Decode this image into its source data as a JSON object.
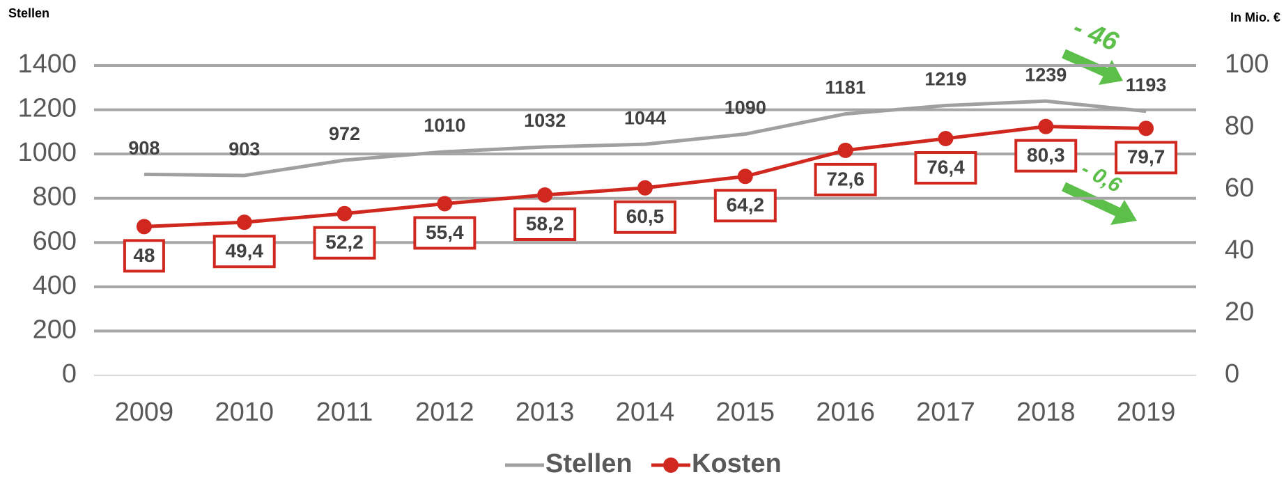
{
  "chart_data": {
    "type": "line",
    "y_axis_title": "Stellen",
    "y2_axis_title": "In Mio. €",
    "categories": [
      "2009",
      "2010",
      "2011",
      "2012",
      "2013",
      "2014",
      "2015",
      "2016",
      "2017",
      "2018",
      "2019"
    ],
    "series": [
      {
        "name": "Stellen",
        "color": "#a0a0a0",
        "values": [
          908,
          903,
          972,
          1010,
          1032,
          1044,
          1090,
          1181,
          1219,
          1239,
          1193
        ]
      },
      {
        "name": "Kosten",
        "color": "#d0281f",
        "axis": "y2",
        "values": [
          48,
          49.4,
          52.2,
          55.4,
          58.2,
          60.5,
          64.2,
          72.6,
          76.4,
          80.3,
          79.7
        ],
        "value_labels": [
          "48",
          "49,4",
          "52,2",
          "55,4",
          "58,2",
          "60,5",
          "64,2",
          "72,6",
          "76,4",
          "80,3",
          "79,7"
        ]
      }
    ],
    "ylim": [
      0,
      1400
    ],
    "yticks": [
      0,
      200,
      400,
      600,
      800,
      1000,
      1200,
      1400
    ],
    "y2lim": [
      0,
      100
    ],
    "y2ticks": [
      0,
      20,
      40,
      60,
      80,
      100
    ],
    "grid": true,
    "annotations": [
      "- 46",
      "- 0,6"
    ]
  }
}
